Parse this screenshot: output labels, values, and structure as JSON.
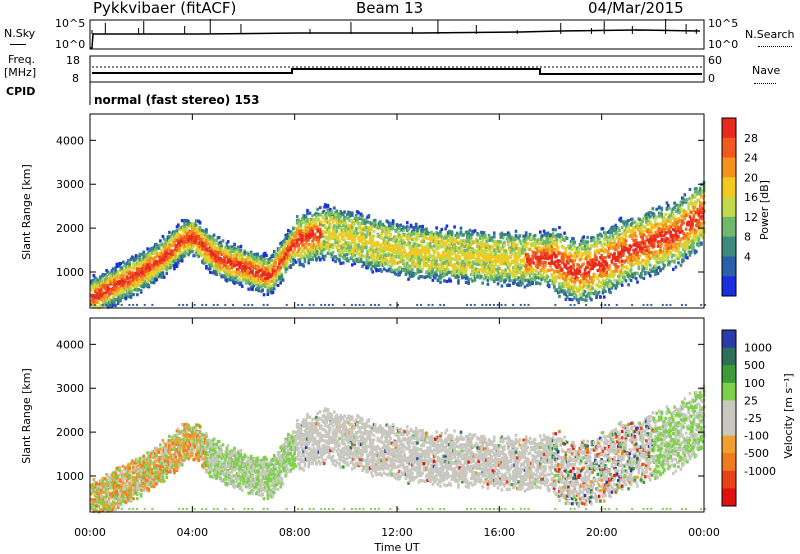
{
  "header": {
    "station": "Pykkvibaer (fitACF)",
    "beam": "Beam 13",
    "date": "04/Mar/2015"
  },
  "strip_labels": {
    "nsky": "N.Sky",
    "nsky_ticks": [
      "10^5",
      "10^0"
    ],
    "nsearch": "N.Search",
    "nsearch_ticks": [
      "10^5",
      "10^0"
    ],
    "freq_line1": "Freq.",
    "freq_line2": "[MHz]",
    "freq_ticks": [
      "18",
      "8"
    ],
    "nave": "Nave",
    "nave_ticks": [
      "60",
      "0"
    ],
    "cpid": "CPID",
    "cpid_text": "normal (fast stereo) 153"
  },
  "x_axis": {
    "label": "Time UT",
    "ticks": [
      "00:00",
      "04:00",
      "08:00",
      "12:00",
      "16:00",
      "20:00",
      "00:00"
    ]
  },
  "panels": {
    "power": {
      "ylabel": "Slant Range [km]",
      "yticks": [
        "4000",
        "3000",
        "2000",
        "1000"
      ],
      "colorbar_label": "Power [dB]",
      "colorbar_ticks": [
        "28",
        "24",
        "20",
        "16",
        "12",
        "8",
        "4"
      ],
      "colors": [
        "#e8291c",
        "#f05a1e",
        "#f5921e",
        "#f5c81e",
        "#c2d94a",
        "#6fb86d",
        "#3e8a7b",
        "#2b5fa8",
        "#1b2de0"
      ]
    },
    "velocity": {
      "ylabel": "Slant Range [km]",
      "yticks": [
        "4000",
        "3000",
        "2000",
        "1000"
      ],
      "colorbar_label": "Velocity [m s⁻¹]",
      "colorbar_ticks": [
        "1000",
        "500",
        "100",
        "25",
        "-25",
        "-100",
        "-500",
        "-1000"
      ],
      "colors": [
        "#2a3aa8",
        "#2e6f5a",
        "#3d9b3a",
        "#7cd04a",
        "#c8c8c0",
        "#c8c8c0",
        "#f0a030",
        "#f07a1e",
        "#e84018",
        "#e01010"
      ]
    }
  },
  "chart_data": {
    "type": "heatmap",
    "x": [
      "00:00",
      "04:00",
      "08:00",
      "12:00",
      "16:00",
      "20:00",
      "00:00"
    ],
    "ylim": [
      180,
      4600
    ],
    "power_range_db": [
      0,
      30
    ],
    "velocity_range": [
      -1000,
      1000
    ],
    "frequency_mhz": {
      "x_hours": [
        0,
        8,
        18,
        24
      ],
      "values": [
        10,
        12,
        10,
        10
      ]
    },
    "nave": {
      "x_hours": [
        0,
        8,
        18,
        24
      ],
      "values": [
        10,
        25,
        10,
        10
      ]
    },
    "scatter_ridge_km": {
      "x_hours": [
        0,
        1,
        2,
        3,
        3.5,
        4,
        5,
        6,
        7,
        8,
        9,
        10,
        12,
        14,
        16,
        18,
        19,
        20,
        21,
        22,
        23,
        24
      ],
      "values": [
        400,
        700,
        1000,
        1400,
        1700,
        1800,
        1300,
        1100,
        900,
        1700,
        1900,
        1800,
        1500,
        1400,
        1300,
        1300,
        1000,
        1200,
        1500,
        1700,
        1900,
        2400
      ]
    }
  }
}
